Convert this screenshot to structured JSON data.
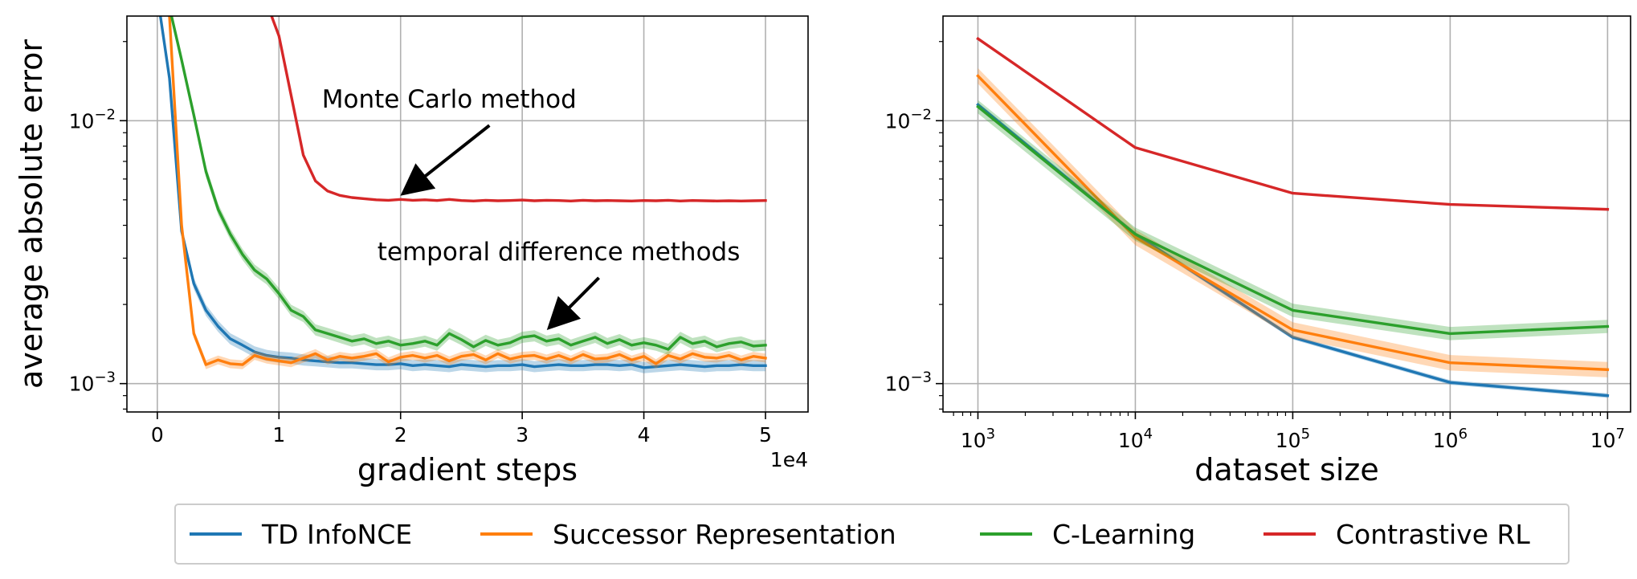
{
  "chart_data": [
    {
      "type": "line",
      "panel": "left",
      "xlabel": "gradient steps",
      "ylabel": "average absolute error",
      "x_offset_label": "1e4",
      "xlim": [
        -2500,
        53500
      ],
      "ylim": [
        0.00078,
        0.025
      ],
      "yscale": "log",
      "grid": true,
      "xticks": [
        0,
        10000,
        20000,
        30000,
        40000,
        50000
      ],
      "xtick_labels": [
        "0",
        "1",
        "2",
        "3",
        "4",
        "5"
      ],
      "yticks": [
        0.001,
        0.01
      ],
      "ytick_labels": [
        {
          "base": "10",
          "exp": "−3"
        },
        {
          "base": "10",
          "exp": "−2"
        }
      ],
      "annotations": [
        {
          "text": "Monte Carlo method",
          "arrow_to": [
            20000,
            0.005
          ],
          "text_at": [
            24000,
            0.0112
          ]
        },
        {
          "text": "temporal difference methods",
          "arrow_to": [
            32000,
            0.00155
          ],
          "text_at": [
            33000,
            0.00295
          ]
        }
      ],
      "series": [
        {
          "name": "TD InfoNCE",
          "color": "#1f77b4",
          "band": 0.05,
          "x": [
            0,
            1000,
            2000,
            3000,
            4000,
            5000,
            6000,
            7000,
            8000,
            9000,
            10000,
            11000,
            12000,
            13000,
            14000,
            15000,
            16000,
            17000,
            18000,
            19000,
            20000,
            21000,
            22000,
            23000,
            24000,
            25000,
            26000,
            27000,
            28000,
            29000,
            30000,
            31000,
            32000,
            33000,
            34000,
            35000,
            36000,
            37000,
            38000,
            39000,
            40000,
            41000,
            42000,
            43000,
            44000,
            45000,
            46000,
            47000,
            48000,
            49000,
            50000
          ],
          "y": [
            0.03,
            0.0145,
            0.0038,
            0.0024,
            0.0019,
            0.00165,
            0.00148,
            0.0014,
            0.00132,
            0.00128,
            0.00126,
            0.00125,
            0.00123,
            0.00122,
            0.00121,
            0.0012,
            0.0012,
            0.00119,
            0.00118,
            0.00118,
            0.00119,
            0.00117,
            0.00118,
            0.00117,
            0.00116,
            0.00118,
            0.00117,
            0.00116,
            0.00117,
            0.00117,
            0.00118,
            0.00116,
            0.00117,
            0.00118,
            0.00117,
            0.00117,
            0.00118,
            0.00118,
            0.00117,
            0.00118,
            0.00115,
            0.00116,
            0.00117,
            0.00118,
            0.00117,
            0.00116,
            0.00117,
            0.00117,
            0.00118,
            0.00117,
            0.00117
          ]
        },
        {
          "name": "Successor Representation",
          "color": "#ff7f0e",
          "band": 0.04,
          "x": [
            1000,
            2000,
            3000,
            4000,
            5000,
            6000,
            7000,
            8000,
            9000,
            10000,
            11000,
            12000,
            13000,
            14000,
            15000,
            16000,
            17000,
            18000,
            19000,
            20000,
            21000,
            22000,
            23000,
            24000,
            25000,
            26000,
            27000,
            28000,
            29000,
            30000,
            31000,
            32000,
            33000,
            34000,
            35000,
            36000,
            37000,
            38000,
            39000,
            40000,
            41000,
            42000,
            43000,
            44000,
            45000,
            46000,
            47000,
            48000,
            49000,
            50000
          ],
          "y": [
            0.025,
            0.004,
            0.00155,
            0.00118,
            0.00123,
            0.00119,
            0.00118,
            0.00128,
            0.00124,
            0.00122,
            0.0012,
            0.00125,
            0.0013,
            0.00123,
            0.00127,
            0.00125,
            0.00127,
            0.0013,
            0.00121,
            0.00126,
            0.00128,
            0.00125,
            0.00128,
            0.00122,
            0.00127,
            0.00129,
            0.00123,
            0.0013,
            0.00124,
            0.00127,
            0.00128,
            0.00124,
            0.00128,
            0.00123,
            0.00129,
            0.00124,
            0.00125,
            0.00129,
            0.00123,
            0.00127,
            0.00119,
            0.00128,
            0.00124,
            0.0013,
            0.00126,
            0.00125,
            0.00128,
            0.00123,
            0.00127,
            0.00125
          ]
        },
        {
          "name": "C-Learning",
          "color": "#2ca02c",
          "band": 0.05,
          "x": [
            1000,
            2000,
            3000,
            4000,
            5000,
            6000,
            7000,
            8000,
            9000,
            10000,
            11000,
            12000,
            13000,
            14000,
            15000,
            16000,
            17000,
            18000,
            19000,
            20000,
            21000,
            22000,
            23000,
            24000,
            25000,
            26000,
            27000,
            28000,
            29000,
            30000,
            31000,
            32000,
            33000,
            34000,
            35000,
            36000,
            37000,
            38000,
            39000,
            40000,
            41000,
            42000,
            43000,
            44000,
            45000,
            46000,
            47000,
            48000,
            49000,
            50000
          ],
          "y": [
            0.027,
            0.017,
            0.0105,
            0.0064,
            0.0046,
            0.0037,
            0.0031,
            0.0027,
            0.0025,
            0.0022,
            0.0019,
            0.0018,
            0.0016,
            0.00155,
            0.0015,
            0.00145,
            0.00148,
            0.00142,
            0.00145,
            0.0014,
            0.00142,
            0.00145,
            0.0014,
            0.00155,
            0.00147,
            0.00138,
            0.00146,
            0.0014,
            0.00143,
            0.0015,
            0.00152,
            0.00145,
            0.00148,
            0.0014,
            0.00145,
            0.0015,
            0.00142,
            0.00147,
            0.0014,
            0.00143,
            0.0014,
            0.00135,
            0.0015,
            0.00142,
            0.00145,
            0.00138,
            0.00142,
            0.00144,
            0.00139,
            0.0014
          ]
        },
        {
          "name": "Contrastive RL",
          "color": "#d62728",
          "band": 0,
          "x": [
            9000,
            10000,
            11000,
            12000,
            13000,
            14000,
            15000,
            16000,
            17000,
            18000,
            19000,
            20000,
            21000,
            22000,
            23000,
            24000,
            25000,
            26000,
            27000,
            28000,
            29000,
            30000,
            31000,
            32000,
            33000,
            34000,
            35000,
            36000,
            37000,
            38000,
            39000,
            40000,
            41000,
            42000,
            43000,
            44000,
            45000,
            46000,
            47000,
            48000,
            49000,
            50000
          ],
          "y": [
            0.028,
            0.021,
            0.0125,
            0.0074,
            0.0059,
            0.0054,
            0.0052,
            0.0051,
            0.00505,
            0.005,
            0.00498,
            0.00502,
            0.00498,
            0.005,
            0.00497,
            0.00502,
            0.00497,
            0.00495,
            0.00498,
            0.00496,
            0.00497,
            0.00499,
            0.00496,
            0.00498,
            0.00497,
            0.00495,
            0.00498,
            0.00496,
            0.00497,
            0.00496,
            0.00495,
            0.00497,
            0.00496,
            0.00498,
            0.00495,
            0.00497,
            0.00496,
            0.00495,
            0.00496,
            0.00495,
            0.00496,
            0.00497
          ]
        }
      ]
    },
    {
      "type": "line",
      "panel": "right",
      "xlabel": "dataset size",
      "ylabel": "",
      "xscale": "log",
      "yscale": "log",
      "xlim": [
        600,
        14000000
      ],
      "ylim": [
        0.00078,
        0.025
      ],
      "grid": true,
      "xticks": [
        1000,
        10000,
        100000,
        1000000,
        10000000
      ],
      "xtick_labels": [
        {
          "base": "10",
          "exp": "3"
        },
        {
          "base": "10",
          "exp": "4"
        },
        {
          "base": "10",
          "exp": "5"
        },
        {
          "base": "10",
          "exp": "6"
        },
        {
          "base": "10",
          "exp": "7"
        }
      ],
      "yticks": [
        0.001,
        0.01
      ],
      "ytick_labels": [
        {
          "base": "10",
          "exp": "−3"
        },
        {
          "base": "10",
          "exp": "−2"
        }
      ],
      "series": [
        {
          "name": "TD InfoNCE",
          "color": "#1f77b4",
          "band": 0.02,
          "x": [
            1000,
            10000,
            100000,
            1000000,
            10000000
          ],
          "y": [
            0.0115,
            0.0037,
            0.0015,
            0.00101,
            0.0009
          ]
        },
        {
          "name": "Successor Representation",
          "color": "#ff7f0e",
          "band": 0.07,
          "x": [
            1000,
            10000,
            100000,
            1000000,
            10000000
          ],
          "y": [
            0.0148,
            0.0036,
            0.0016,
            0.0012,
            0.00113
          ]
        },
        {
          "name": "C-Learning",
          "color": "#2ca02c",
          "band": 0.06,
          "x": [
            1000,
            10000,
            100000,
            1000000,
            10000000
          ],
          "y": [
            0.0113,
            0.0037,
            0.0019,
            0.00155,
            0.00165
          ]
        },
        {
          "name": "Contrastive RL",
          "color": "#d62728",
          "band": 0,
          "x": [
            1000,
            10000,
            100000,
            1000000,
            10000000
          ],
          "y": [
            0.0205,
            0.0079,
            0.0053,
            0.0048,
            0.0046
          ]
        }
      ]
    }
  ],
  "legend": {
    "placement": "bottom-center",
    "items": [
      {
        "label": "TD InfoNCE",
        "color": "#1f77b4"
      },
      {
        "label": "Successor Representation",
        "color": "#ff7f0e"
      },
      {
        "label": "C-Learning",
        "color": "#2ca02c"
      },
      {
        "label": "Contrastive RL",
        "color": "#d62728"
      }
    ]
  }
}
